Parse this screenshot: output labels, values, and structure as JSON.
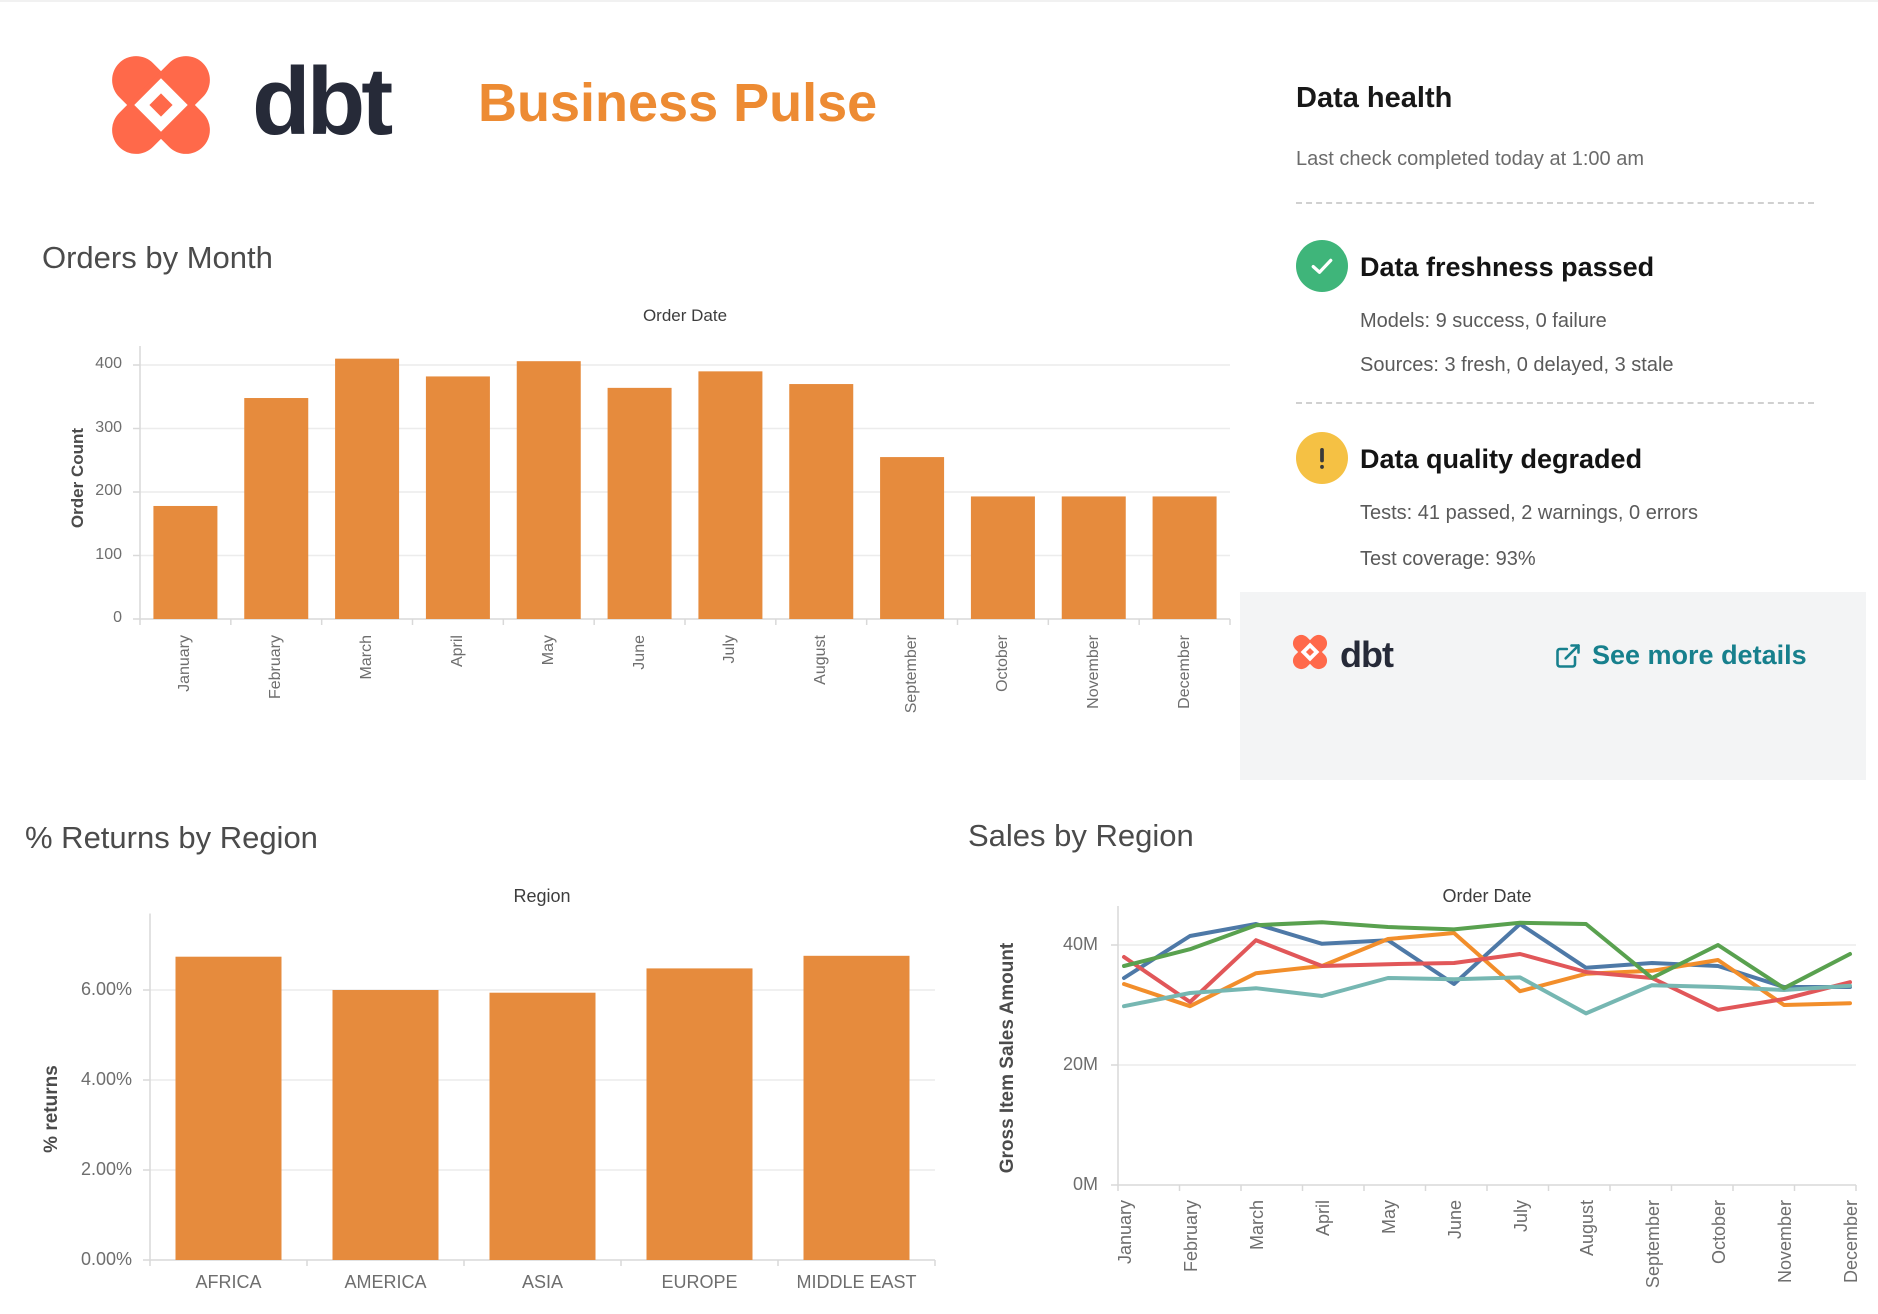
{
  "header": {
    "brand": "dbt",
    "title": "Business Pulse"
  },
  "colors": {
    "brand_coral": "#FF694A",
    "brand_navy": "#262A38",
    "accent_orange": "#ED8B33",
    "bar_orange": "#E68B3D",
    "link_teal": "#17808D",
    "status_green": "#3FB57A",
    "status_yellow": "#F5C144",
    "series": [
      "#4E79A7",
      "#F28E2B",
      "#E15759",
      "#76B7B2",
      "#59A14F"
    ]
  },
  "data_health": {
    "title": "Data health",
    "subtitle": "Last check completed today at 1:00 am",
    "freshness": {
      "title": "Data freshness passed",
      "models": "Models: 9 success, 0 failure",
      "sources": "Sources: 3 fresh, 0 delayed, 3 stale"
    },
    "quality": {
      "title": "Data quality degraded",
      "tests": "Tests: 41 passed, 2 warnings, 0 errors",
      "coverage": "Test coverage: 93%"
    },
    "footer": {
      "brand": "dbt",
      "link_label": "See more details"
    }
  },
  "chart_data": [
    {
      "id": "orders",
      "type": "bar",
      "title": "Orders by Month",
      "pane_header": "Order Date",
      "xlabel": "Order Date",
      "ylabel": "Order Count",
      "categories": [
        "January",
        "February",
        "March",
        "April",
        "May",
        "June",
        "July",
        "August",
        "September",
        "October",
        "November",
        "December"
      ],
      "values": [
        178,
        348,
        410,
        382,
        406,
        364,
        390,
        370,
        255,
        193,
        193,
        193
      ],
      "yticks": [
        0,
        100,
        200,
        300,
        400
      ],
      "ylim": [
        0,
        430
      ],
      "grid": true,
      "legend": "none"
    },
    {
      "id": "returns",
      "type": "bar",
      "title": "% Returns by Region",
      "pane_header": "Region",
      "xlabel": "Region",
      "ylabel": "% returns",
      "categories": [
        "AFRICA",
        "AMERICA",
        "ASIA",
        "EUROPE",
        "MIDDLE EAST"
      ],
      "values": [
        6.74,
        6.0,
        5.94,
        6.48,
        6.76
      ],
      "yticks": [
        0,
        2,
        4,
        6
      ],
      "ytick_labels": [
        "0.00%",
        "2.00%",
        "4.00%",
        "6.00%"
      ],
      "ylim": [
        0,
        7.7
      ],
      "grid": true,
      "legend": "none"
    },
    {
      "id": "sales",
      "type": "line",
      "title": "Sales by Region",
      "pane_header": "Order Date",
      "xlabel": "Order Date",
      "ylabel": "Gross Item Sales Amount",
      "x": [
        "January",
        "February",
        "March",
        "April",
        "May",
        "June",
        "July",
        "August",
        "September",
        "October",
        "November",
        "December"
      ],
      "series": [
        {
          "name": "blue",
          "color": "#4E79A7",
          "values": [
            34.5,
            41.5,
            43.5,
            40.2,
            40.8,
            33.5,
            43.5,
            36.2,
            37.0,
            36.5,
            33.0,
            33.0
          ]
        },
        {
          "name": "orange",
          "color": "#F28E2B",
          "values": [
            33.5,
            29.8,
            35.3,
            36.5,
            41.0,
            42.0,
            32.3,
            35.2,
            35.7,
            37.5,
            30.0,
            30.3
          ]
        },
        {
          "name": "red",
          "color": "#E15759",
          "values": [
            38.0,
            30.5,
            40.8,
            36.5,
            36.8,
            37.0,
            38.5,
            35.5,
            34.5,
            29.2,
            31.0,
            33.8
          ]
        },
        {
          "name": "teal",
          "color": "#76B7B2",
          "values": [
            29.8,
            32.0,
            32.8,
            31.5,
            34.5,
            34.3,
            34.6,
            28.6,
            33.3,
            33.0,
            32.5,
            33.2
          ]
        },
        {
          "name": "green",
          "color": "#59A14F",
          "values": [
            36.5,
            39.3,
            43.3,
            43.8,
            43.0,
            42.6,
            43.7,
            43.5,
            34.5,
            40.0,
            32.8,
            38.5
          ]
        }
      ],
      "yticks": [
        0,
        20,
        40
      ],
      "ytick_labels": [
        "0M",
        "20M",
        "40M"
      ],
      "ylim": [
        0,
        46.5
      ],
      "grid": true,
      "legend": "none"
    }
  ]
}
